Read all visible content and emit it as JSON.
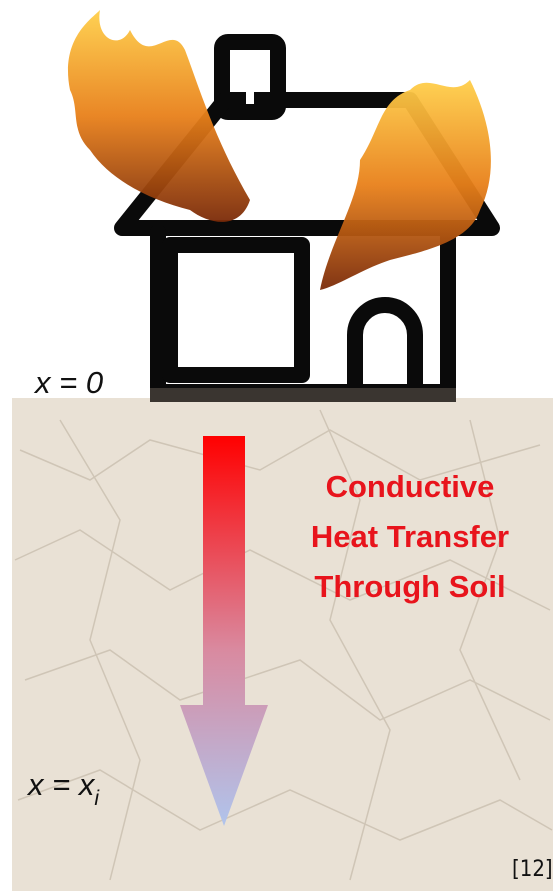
{
  "labels": {
    "top": "x = 0",
    "bottom": {
      "main": "x = x",
      "subscript": "i"
    }
  },
  "title_lines": [
    "Conductive",
    "Heat Transfer",
    "Through Soil"
  ],
  "reference": "[12]"
}
